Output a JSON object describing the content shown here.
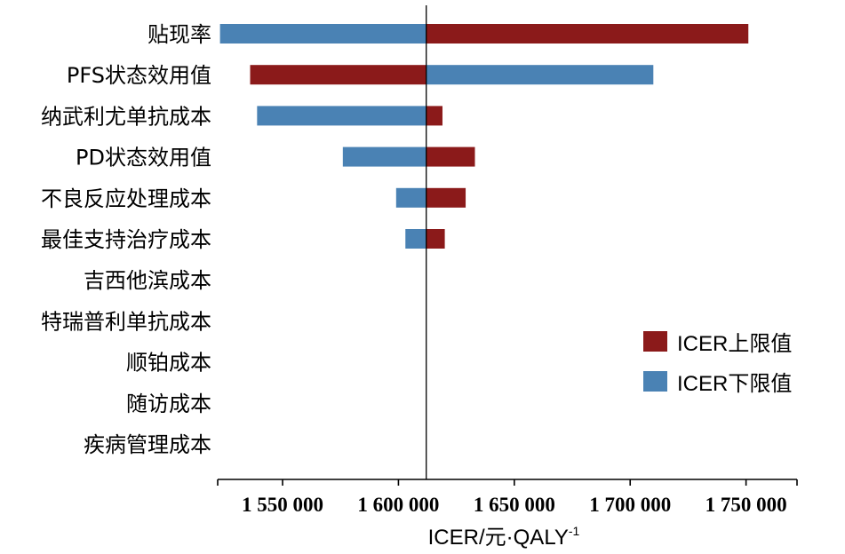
{
  "chart_data": {
    "type": "bar",
    "orientation": "horizontal-tornado",
    "base_value": 1612000,
    "categories": [
      "贴现率",
      "PFS状态效用值",
      "纳武利尤单抗成本",
      "PD状态效用值",
      "不良反应处理成本",
      "最佳支持治疗成本",
      "吉西他滨成本",
      "特瑞普利单抗成本",
      "顺铂成本",
      "随访成本",
      "疾病管理成本"
    ],
    "series": [
      {
        "name": "ICER上限值",
        "color": "#8b1a1a",
        "values": [
          1751000,
          1536000,
          1619000,
          1633000,
          1629000,
          1620000,
          1612000,
          1612000,
          1612000,
          1612000,
          1612000
        ]
      },
      {
        "name": "ICER下限值",
        "color": "#4a82b4",
        "values": [
          1523000,
          1710000,
          1539000,
          1576000,
          1599000,
          1603000,
          1612000,
          1612000,
          1612000,
          1612000,
          1612000
        ]
      }
    ],
    "xlim": [
      1522000,
      1772000
    ],
    "xticks": [
      1550000,
      1600000,
      1650000,
      1700000,
      1750000
    ],
    "xtick_labels": [
      "1 550 000",
      "1 600 000",
      "1 650 000",
      "1 700 000",
      "1 750 000"
    ],
    "xlabel": "ICER/元·QALY",
    "xlabel_superscript": "-1",
    "ylabel": "",
    "legend": "right-middle",
    "grid": false
  }
}
